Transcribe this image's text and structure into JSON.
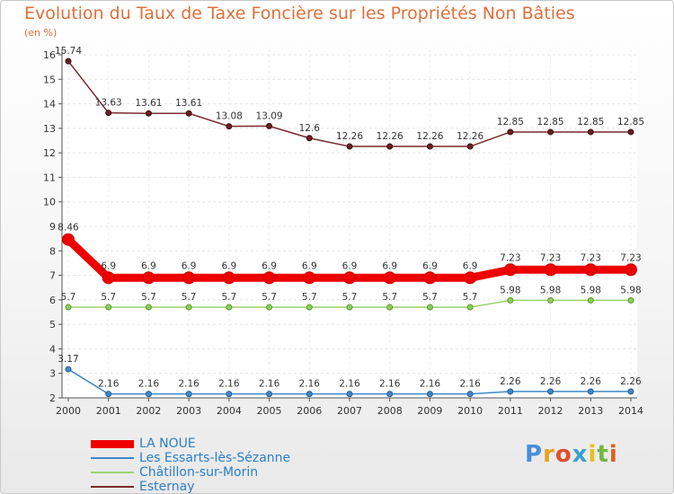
{
  "chart_data": {
    "type": "line",
    "title": "Evolution du Taux de Taxe Foncière sur les Propriétés Non Bâties",
    "ylabel": "(en %)",
    "xlabel": "",
    "x": [
      "2000",
      "2001",
      "2002",
      "2003",
      "2004",
      "2005",
      "2006",
      "2007",
      "2008",
      "2009",
      "2010",
      "2011",
      "2012",
      "2013",
      "2014"
    ],
    "ylim": [
      2,
      16
    ],
    "yticks": [
      "2",
      "3",
      "4",
      "5",
      "6",
      "7",
      "8",
      "9",
      "10",
      "11",
      "12",
      "13",
      "14",
      "15",
      "16"
    ],
    "legend_position": "bottom-left",
    "series": [
      {
        "name": "LA NOUE",
        "color": "#ee0000",
        "values": [
          8.46,
          6.9,
          6.9,
          6.9,
          6.9,
          6.9,
          6.9,
          6.9,
          6.9,
          6.9,
          6.9,
          7.23,
          7.23,
          7.23,
          7.23
        ],
        "labels": [
          "8.46",
          "6.9",
          "6.9",
          "6.9",
          "6.9",
          "6.9",
          "6.9",
          "6.9",
          "6.9",
          "6.9",
          "6.9",
          "7.23",
          "7.23",
          "7.23",
          "7.23"
        ]
      },
      {
        "name": "Les Essarts-lès-Sézanne",
        "color": "#3d87c8",
        "values": [
          3.17,
          2.16,
          2.16,
          2.16,
          2.16,
          2.16,
          2.16,
          2.16,
          2.16,
          2.16,
          2.16,
          2.26,
          2.26,
          2.26,
          2.26
        ],
        "labels": [
          "3.17",
          "2.16",
          "2.16",
          "2.16",
          "2.16",
          "2.16",
          "2.16",
          "2.16",
          "2.16",
          "2.16",
          "2.16",
          "2.26",
          "2.26",
          "2.26",
          "2.26"
        ]
      },
      {
        "name": "Châtillon-sur-Morin",
        "color": "#9ad46c",
        "values": [
          5.7,
          5.7,
          5.7,
          5.7,
          5.7,
          5.7,
          5.7,
          5.7,
          5.7,
          5.7,
          5.7,
          5.98,
          5.98,
          5.98,
          5.98
        ],
        "labels": [
          "5.7",
          "5.7",
          "5.7",
          "5.7",
          "5.7",
          "5.7",
          "5.7",
          "5.7",
          "5.7",
          "5.7",
          "5.7",
          "5.98",
          "5.98",
          "5.98",
          "5.98"
        ]
      },
      {
        "name": "Esternay",
        "color": "#7a2a2a",
        "values": [
          15.74,
          13.63,
          13.61,
          13.61,
          13.08,
          13.09,
          12.6,
          12.26,
          12.26,
          12.26,
          12.26,
          12.85,
          12.85,
          12.85,
          12.85
        ],
        "labels": [
          "15.74",
          "13.63",
          "13.61",
          "13.61",
          "13.08",
          "13.09",
          "12.6",
          "12.26",
          "12.26",
          "12.26",
          "12.26",
          "12.85",
          "12.85",
          "12.85",
          "12.85"
        ]
      }
    ]
  },
  "logo": {
    "letters": [
      "P",
      "r",
      "o",
      "x",
      "i",
      "t",
      "i"
    ],
    "colors": [
      "#4a8fd8",
      "#e8a020",
      "#e05030",
      "#3aa0d0",
      "#e8c020",
      "#70b840",
      "#e06020"
    ]
  }
}
